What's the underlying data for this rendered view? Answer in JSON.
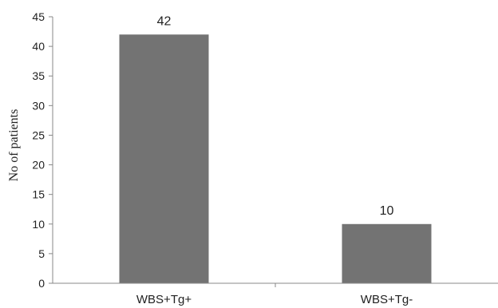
{
  "chart_data": {
    "type": "bar",
    "title": "",
    "xlabel": "",
    "ylabel": "No of patients",
    "categories": [
      "WBS+Tg+",
      "WBS+Tg-"
    ],
    "values": [
      42,
      10
    ],
    "data_labels": [
      "42",
      "10"
    ],
    "ylim": [
      0,
      45
    ],
    "yticks": [
      0,
      5,
      10,
      15,
      20,
      25,
      30,
      35,
      40,
      45
    ],
    "grid": false,
    "legend": "none",
    "bar_color": "#737373"
  }
}
